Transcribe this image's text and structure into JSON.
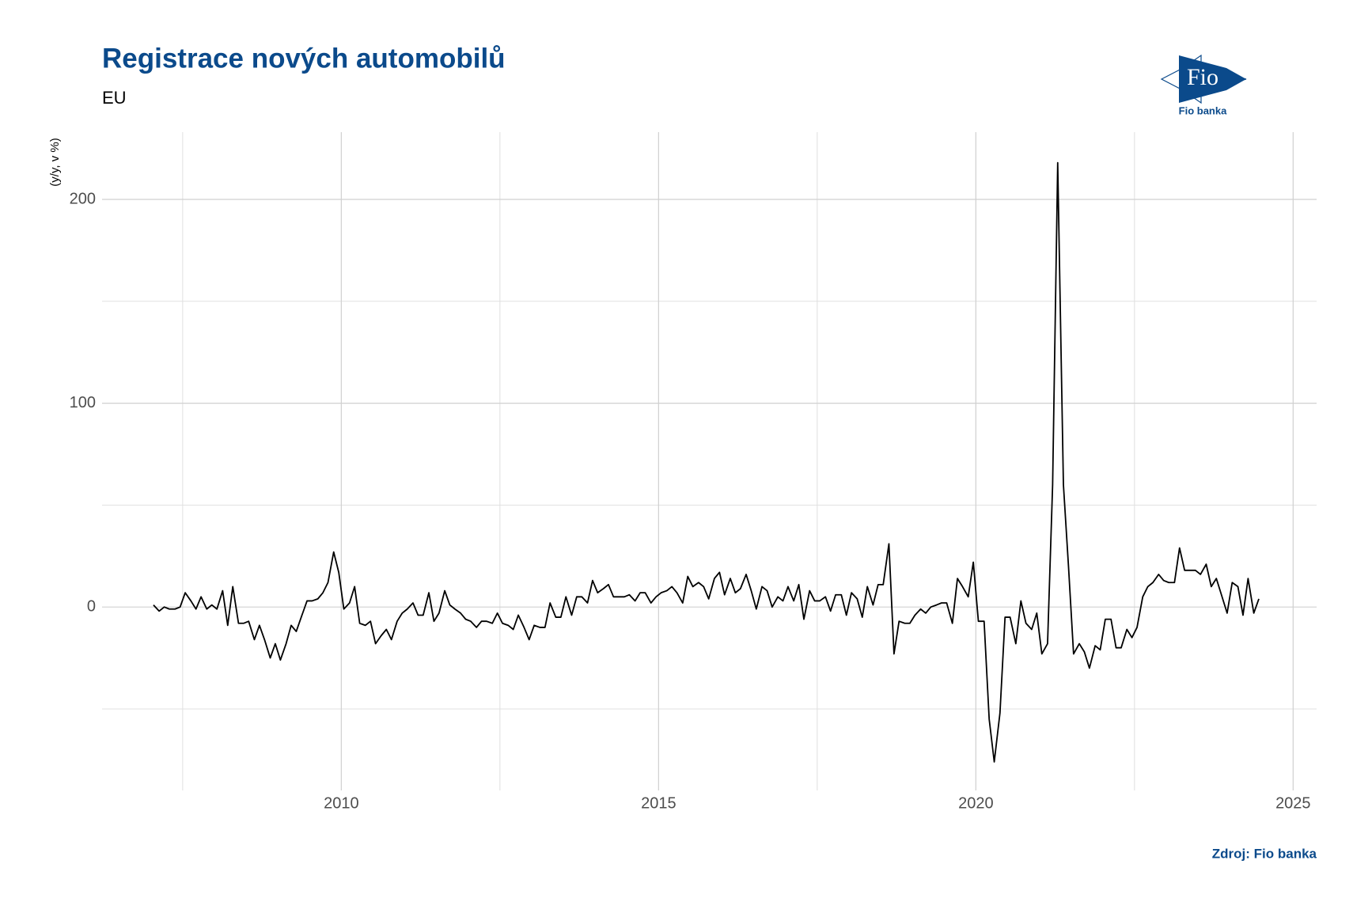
{
  "chart_data": {
    "type": "line",
    "title": "Registrace nových automobilů",
    "subtitle": "EU",
    "y_label": "(y/y, v %)",
    "source": "Zdroj: Fio banka",
    "logo": {
      "mark": "Fio",
      "name": "Fio banka"
    },
    "xlim": [
      2006.23,
      2025.37
    ],
    "xticks": [
      2010,
      2015,
      2020,
      2025
    ],
    "xticks_minor": [
      2007.5,
      2012.5,
      2017.5,
      2022.5
    ],
    "ylim": [
      -90,
      233
    ],
    "yticks": [
      0,
      100,
      200
    ],
    "yticks_minor": [
      -50,
      50,
      150
    ],
    "grid": true,
    "x": [
      2007.04,
      2007.13,
      2007.21,
      2007.29,
      2007.38,
      2007.46,
      2007.54,
      2007.63,
      2007.71,
      2007.79,
      2007.88,
      2007.96,
      2008.04,
      2008.13,
      2008.21,
      2008.29,
      2008.38,
      2008.46,
      2008.54,
      2008.63,
      2008.71,
      2008.79,
      2008.88,
      2008.96,
      2009.04,
      2009.13,
      2009.21,
      2009.29,
      2009.38,
      2009.46,
      2009.54,
      2009.63,
      2009.71,
      2009.79,
      2009.88,
      2009.96,
      2010.04,
      2010.13,
      2010.21,
      2010.29,
      2010.38,
      2010.46,
      2010.54,
      2010.63,
      2010.71,
      2010.79,
      2010.88,
      2010.96,
      2011.04,
      2011.13,
      2011.21,
      2011.29,
      2011.38,
      2011.46,
      2011.54,
      2011.63,
      2011.71,
      2011.79,
      2011.88,
      2011.96,
      2012.04,
      2012.13,
      2012.21,
      2012.29,
      2012.38,
      2012.46,
      2012.54,
      2012.63,
      2012.71,
      2012.79,
      2012.88,
      2012.96,
      2013.04,
      2013.13,
      2013.21,
      2013.29,
      2013.38,
      2013.46,
      2013.54,
      2013.63,
      2013.71,
      2013.79,
      2013.88,
      2013.96,
      2014.04,
      2014.13,
      2014.21,
      2014.29,
      2014.38,
      2014.46,
      2014.54,
      2014.63,
      2014.71,
      2014.79,
      2014.88,
      2014.96,
      2015.04,
      2015.13,
      2015.21,
      2015.29,
      2015.38,
      2015.46,
      2015.54,
      2015.63,
      2015.71,
      2015.79,
      2015.88,
      2015.96,
      2016.04,
      2016.13,
      2016.21,
      2016.29,
      2016.38,
      2016.46,
      2016.54,
      2016.63,
      2016.71,
      2016.79,
      2016.88,
      2016.96,
      2017.04,
      2017.13,
      2017.21,
      2017.29,
      2017.38,
      2017.46,
      2017.54,
      2017.63,
      2017.71,
      2017.79,
      2017.88,
      2017.96,
      2018.04,
      2018.13,
      2018.21,
      2018.29,
      2018.38,
      2018.46,
      2018.54,
      2018.63,
      2018.71,
      2018.79,
      2018.88,
      2018.96,
      2019.04,
      2019.13,
      2019.21,
      2019.29,
      2019.38,
      2019.46,
      2019.54,
      2019.63,
      2019.71,
      2019.79,
      2019.88,
      2019.96,
      2020.04,
      2020.13,
      2020.21,
      2020.29,
      2020.38,
      2020.46,
      2020.54,
      2020.63,
      2020.71,
      2020.79,
      2020.88,
      2020.96,
      2021.04,
      2021.13,
      2021.21,
      2021.29,
      2021.38,
      2021.46,
      2021.54,
      2021.63,
      2021.71,
      2021.79,
      2021.88,
      2021.96,
      2022.04,
      2022.13,
      2022.21,
      2022.29,
      2022.38,
      2022.46,
      2022.54,
      2022.63,
      2022.71,
      2022.79,
      2022.88,
      2022.96,
      2023.04,
      2023.13,
      2023.21,
      2023.29,
      2023.38,
      2023.46,
      2023.54,
      2023.63,
      2023.71,
      2023.79,
      2023.88,
      2023.96,
      2024.04,
      2024.13,
      2024.21,
      2024.29,
      2024.38,
      2024.46
    ],
    "series": [
      {
        "name": "EU",
        "color": "#000000",
        "values": [
          1,
          -2,
          0,
          -1,
          -1,
          0,
          7,
          3,
          -1,
          5,
          -1,
          1,
          -1,
          8,
          -9,
          10,
          -8,
          -8,
          -7,
          -16,
          -9,
          -16,
          -25,
          -18,
          -26,
          -18,
          -9,
          -12,
          -4,
          3,
          3,
          4,
          7,
          12,
          27,
          17,
          -1,
          2,
          10,
          -8,
          -9,
          -7,
          -18,
          -14,
          -11,
          -16,
          -7,
          -3,
          -1,
          2,
          -4,
          -4,
          7,
          -7,
          -3,
          8,
          1,
          -1,
          -3,
          -6,
          -7,
          -10,
          -7,
          -7,
          -8,
          -3,
          -8,
          -9,
          -11,
          -4,
          -10,
          -16,
          -9,
          -10,
          -10,
          2,
          -5,
          -5,
          5,
          -4,
          5,
          5,
          2,
          13,
          7,
          9,
          11,
          5,
          5,
          5,
          6,
          3,
          7,
          7,
          2,
          5,
          7,
          8,
          10,
          7,
          2,
          15,
          10,
          12,
          10,
          4,
          14,
          17,
          6,
          14,
          7,
          9,
          16,
          8,
          -1,
          10,
          8,
          0,
          5,
          3,
          10,
          3,
          11,
          -6,
          8,
          3,
          3,
          5,
          -2,
          6,
          6,
          -4,
          7,
          4,
          -5,
          10,
          1,
          11,
          11,
          31,
          -23,
          -7,
          -8,
          -8,
          -4,
          -1,
          -3,
          0,
          1,
          2,
          2,
          -8,
          14,
          10,
          5,
          22,
          -7,
          -7,
          -55,
          -76,
          -52,
          -5,
          -5,
          -18,
          3,
          -8,
          -11,
          -3,
          -23,
          -18,
          60,
          218,
          60,
          20,
          -23,
          -18,
          -22,
          -30,
          -19,
          -21,
          -6,
          -6,
          -20,
          -20,
          -11,
          -15,
          -10,
          5,
          10,
          12,
          16,
          13,
          12,
          12,
          29,
          18,
          18,
          18,
          16,
          21,
          10,
          14,
          5,
          -3,
          12,
          10,
          -4,
          14,
          -3,
          4
        ]
      }
    ]
  }
}
